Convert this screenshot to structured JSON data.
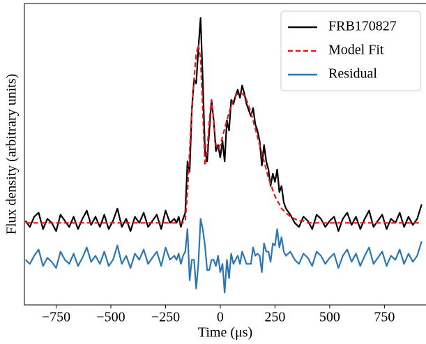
{
  "chart_data": {
    "type": "line",
    "xlabel": "Time (μs)",
    "ylabel": "Flux density (arbitrary units)",
    "xlim": [
      -895,
      940
    ],
    "ylim": [
      -0.4,
      1.07
    ],
    "xticks": [
      {
        "value": -750,
        "label": "−750"
      },
      {
        "value": -500,
        "label": "−500"
      },
      {
        "value": -250,
        "label": "−250"
      },
      0,
      250,
      500,
      750
    ],
    "legend": "upper right",
    "grid": false,
    "x": [
      -890,
      -870,
      -850,
      -830,
      -810,
      -790,
      -770,
      -750,
      -730,
      -710,
      -690,
      -670,
      -650,
      -630,
      -610,
      -590,
      -570,
      -550,
      -530,
      -510,
      -490,
      -470,
      -450,
      -430,
      -410,
      -390,
      -370,
      -350,
      -330,
      -310,
      -290,
      -270,
      -250,
      -230,
      -210,
      -200,
      -190,
      -180,
      -170,
      -160,
      -150,
      -140,
      -130,
      -120,
      -110,
      -100,
      -90,
      -80,
      -70,
      -60,
      -50,
      -40,
      -30,
      -20,
      -10,
      0,
      10,
      20,
      30,
      40,
      50,
      60,
      70,
      80,
      90,
      100,
      110,
      120,
      130,
      140,
      150,
      160,
      170,
      180,
      190,
      200,
      210,
      220,
      230,
      240,
      250,
      260,
      270,
      280,
      290,
      300,
      320,
      340,
      360,
      380,
      400,
      420,
      440,
      460,
      480,
      500,
      520,
      540,
      560,
      580,
      600,
      620,
      640,
      660,
      680,
      700,
      720,
      740,
      760,
      780,
      800,
      820,
      840,
      860,
      880,
      900,
      920
    ],
    "series": [
      {
        "name": "FRB170827",
        "color": "#000000",
        "linestyle": "solid",
        "values": [
          0.01,
          -0.02,
          0.03,
          0.05,
          -0.03,
          0.02,
          0.0,
          -0.04,
          0.04,
          0.01,
          -0.02,
          0.03,
          -0.03,
          0.02,
          0.06,
          -0.01,
          0.03,
          -0.02,
          0.04,
          -0.03,
          0.01,
          0.07,
          -0.02,
          0.02,
          -0.04,
          0.03,
          0.0,
          0.05,
          -0.02,
          0.01,
          0.04,
          -0.03,
          0.06,
          0.0,
          0.02,
          0.0,
          0.03,
          -0.02,
          0.02,
          0.05,
          0.3,
          0.25,
          0.55,
          0.7,
          0.68,
          0.85,
          1.0,
          0.7,
          0.35,
          0.3,
          0.45,
          0.6,
          0.5,
          0.35,
          0.38,
          0.32,
          0.4,
          0.3,
          0.5,
          0.45,
          0.6,
          0.58,
          0.62,
          0.65,
          0.61,
          0.67,
          0.63,
          0.58,
          0.55,
          0.52,
          0.56,
          0.48,
          0.45,
          0.4,
          0.28,
          0.38,
          0.3,
          0.26,
          0.18,
          0.24,
          0.2,
          0.26,
          0.15,
          0.18,
          0.1,
          0.07,
          0.04,
          0.0,
          -0.02,
          0.03,
          0.01,
          -0.03,
          0.04,
          0.02,
          -0.02,
          0.01,
          0.03,
          -0.04,
          0.02,
          0.05,
          -0.01,
          0.03,
          -0.03,
          0.02,
          0.06,
          -0.02,
          0.01,
          0.04,
          -0.03,
          0.02,
          0.0,
          0.05,
          -0.02,
          0.03,
          -0.01,
          0.02,
          0.09
        ]
      },
      {
        "name": "Model Fit",
        "color": "#e8191c",
        "linestyle": "dashed",
        "values": [
          0,
          0,
          0,
          0,
          0,
          0,
          0,
          0,
          0,
          0,
          0,
          0,
          0,
          0,
          0,
          0,
          0,
          0,
          0,
          0,
          0,
          0,
          0,
          0,
          0,
          0,
          0,
          0,
          0,
          0,
          0,
          0,
          0,
          0,
          0,
          0,
          0,
          0,
          0,
          0.01,
          0.15,
          0.35,
          0.55,
          0.7,
          0.82,
          0.87,
          0.8,
          0.55,
          0.28,
          0.35,
          0.5,
          0.6,
          0.5,
          0.38,
          0.36,
          0.38,
          0.42,
          0.46,
          0.5,
          0.54,
          0.57,
          0.6,
          0.62,
          0.63,
          0.63,
          0.63,
          0.62,
          0.6,
          0.57,
          0.54,
          0.5,
          0.46,
          0.42,
          0.38,
          0.34,
          0.3,
          0.26,
          0.22,
          0.19,
          0.16,
          0.13,
          0.11,
          0.09,
          0.07,
          0.06,
          0.05,
          0.03,
          0.02,
          0.01,
          0.01,
          0,
          0,
          0,
          0,
          0,
          0,
          0,
          0,
          0,
          0,
          0,
          0,
          0,
          0,
          0,
          0,
          0,
          0,
          0,
          0,
          0,
          0,
          0,
          0,
          0,
          0,
          0
        ]
      },
      {
        "name": "Residual",
        "color": "#2b77b4",
        "linestyle": "solid",
        "values": [
          -0.18,
          -0.2,
          -0.16,
          -0.13,
          -0.21,
          -0.17,
          -0.19,
          -0.22,
          -0.14,
          -0.18,
          -0.2,
          -0.15,
          -0.21,
          -0.17,
          -0.12,
          -0.19,
          -0.16,
          -0.2,
          -0.14,
          -0.21,
          -0.18,
          -0.11,
          -0.2,
          -0.16,
          -0.22,
          -0.15,
          -0.18,
          -0.13,
          -0.2,
          -0.17,
          -0.14,
          -0.21,
          -0.12,
          -0.18,
          -0.16,
          -0.18,
          -0.15,
          -0.2,
          -0.16,
          -0.14,
          -0.03,
          -0.28,
          -0.18,
          -0.18,
          -0.32,
          -0.2,
          0.02,
          -0.03,
          -0.11,
          -0.23,
          -0.23,
          -0.18,
          -0.18,
          -0.21,
          -0.16,
          -0.24,
          -0.2,
          -0.34,
          -0.18,
          -0.27,
          -0.15,
          -0.2,
          -0.18,
          -0.16,
          -0.2,
          -0.14,
          -0.17,
          -0.2,
          -0.2,
          -0.2,
          -0.12,
          -0.16,
          -0.15,
          -0.16,
          -0.24,
          -0.1,
          -0.14,
          -0.14,
          -0.19,
          -0.1,
          -0.11,
          -0.03,
          -0.12,
          -0.07,
          -0.14,
          -0.16,
          -0.14,
          -0.18,
          -0.2,
          -0.15,
          -0.17,
          -0.21,
          -0.14,
          -0.16,
          -0.2,
          -0.17,
          -0.15,
          -0.22,
          -0.16,
          -0.13,
          -0.19,
          -0.15,
          -0.21,
          -0.16,
          -0.12,
          -0.2,
          -0.17,
          -0.14,
          -0.21,
          -0.16,
          -0.18,
          -0.13,
          -0.2,
          -0.15,
          -0.19,
          -0.16,
          -0.09
        ]
      }
    ]
  }
}
